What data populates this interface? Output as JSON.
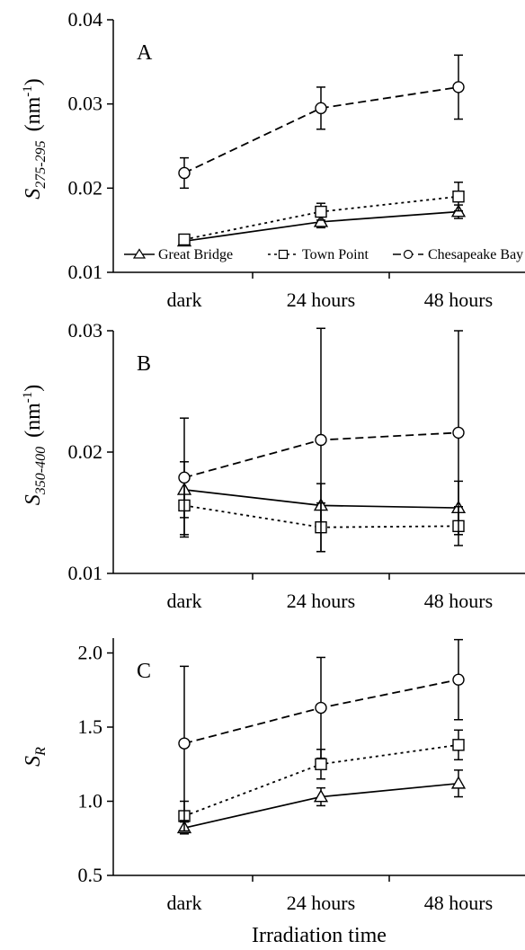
{
  "chart_data": [
    {
      "type": "line",
      "panel_label": "A",
      "categories": [
        "dark",
        "24 hours",
        "48 hours"
      ],
      "ylabel_main": "S",
      "ylabel_sub": "275-295",
      "ylabel_unit": "(nm",
      "ylabel_unit_sup": "-1",
      "ylabel_unit_close": ")",
      "ylim": [
        0.01,
        0.04
      ],
      "yticks": [
        "0.01",
        "0.02",
        "0.03",
        "0.04"
      ],
      "ytick_values": [
        0.01,
        0.02,
        0.03,
        0.04
      ],
      "legend": "bottom, inside plot",
      "series": [
        {
          "name": "Great Bridge",
          "marker": "triangle",
          "dash": "solid",
          "values": [
            0.0137,
            0.016,
            0.0172
          ],
          "errors": [
            0.0003,
            0.0007,
            0.0008
          ]
        },
        {
          "name": "Town Point",
          "marker": "square",
          "dash": "dotted",
          "values": [
            0.0139,
            0.0172,
            0.019
          ],
          "errors": [
            0.0004,
            0.001,
            0.0017
          ]
        },
        {
          "name": "Chesapeake Bay",
          "marker": "circle",
          "dash": "dashed",
          "values": [
            0.0218,
            0.0295,
            0.032
          ],
          "errors": [
            0.0018,
            0.0025,
            0.0038
          ]
        }
      ]
    },
    {
      "type": "line",
      "panel_label": "B",
      "categories": [
        "dark",
        "24 hours",
        "48 hours"
      ],
      "ylabel_main": "S",
      "ylabel_sub": "350-400",
      "ylabel_unit": "(nm",
      "ylabel_unit_sup": "-1",
      "ylabel_unit_close": ")",
      "ylim": [
        0.01,
        0.03
      ],
      "yticks": [
        "0.01",
        "0.02",
        "0.03"
      ],
      "ytick_values": [
        0.01,
        0.02,
        0.03
      ],
      "series": [
        {
          "name": "Great Bridge",
          "marker": "triangle",
          "dash": "solid",
          "values": [
            0.0169,
            0.0156,
            0.0154
          ],
          "errors": [
            0.0023,
            0.0018,
            0.0022
          ]
        },
        {
          "name": "Town Point",
          "marker": "square",
          "dash": "dotted",
          "values": [
            0.0156,
            0.0138,
            0.0139
          ],
          "errors": [
            0.0024,
            0.002,
            0.0016
          ]
        },
        {
          "name": "Chesapeake Bay",
          "marker": "circle",
          "dash": "dashed",
          "values": [
            0.0179,
            0.021,
            0.0216
          ],
          "errors": [
            0.0049,
            0.0092,
            0.0084
          ]
        }
      ]
    },
    {
      "type": "line",
      "panel_label": "C",
      "categories": [
        "dark",
        "24 hours",
        "48 hours"
      ],
      "ylabel_main": "S",
      "ylabel_sub": "R",
      "ylim": [
        0.5,
        2.1
      ],
      "yticks": [
        "0.5",
        "1.0",
        "1.5",
        "2.0"
      ],
      "ytick_values": [
        0.5,
        1.0,
        1.5,
        2.0
      ],
      "xlabel": "Irradiation time",
      "series": [
        {
          "name": "Great Bridge",
          "marker": "triangle",
          "dash": "solid",
          "values": [
            0.82,
            1.03,
            1.12
          ],
          "errors": [
            0.04,
            0.06,
            0.09
          ]
        },
        {
          "name": "Town Point",
          "marker": "square",
          "dash": "dotted",
          "values": [
            0.9,
            1.25,
            1.38
          ],
          "errors": [
            0.1,
            0.1,
            0.1
          ]
        },
        {
          "name": "Chesapeake Bay",
          "marker": "circle",
          "dash": "dashed",
          "values": [
            1.39,
            1.63,
            1.82
          ],
          "errors": [
            0.52,
            0.34,
            0.27
          ]
        }
      ]
    }
  ]
}
